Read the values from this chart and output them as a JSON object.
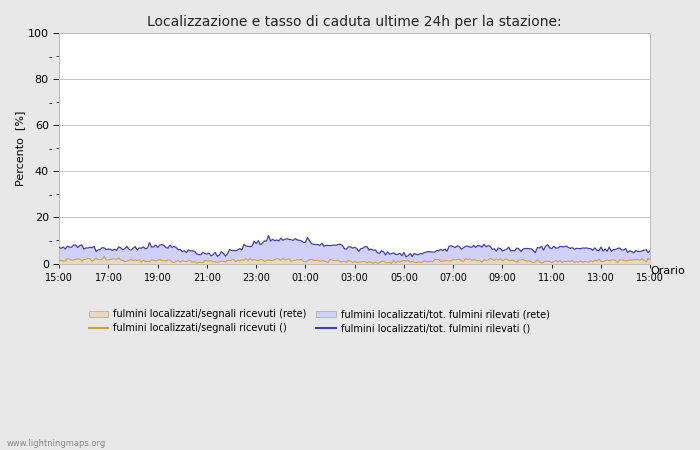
{
  "title": "Localizzazione e tasso di caduta ultime 24h per la stazione:",
  "ylabel": "Percento  [%]",
  "xlabel": "Orario",
  "ylim": [
    0,
    100
  ],
  "yticks": [
    0,
    20,
    40,
    60,
    80,
    100
  ],
  "yticks_minor": [
    10,
    30,
    50,
    70,
    90
  ],
  "xtick_labels": [
    "15:00",
    "17:00",
    "19:00",
    "21:00",
    "23:00",
    "01:00",
    "03:00",
    "05:00",
    "07:00",
    "09:00",
    "11:00",
    "13:00",
    "15:00"
  ],
  "fig_bg_color": "#e8e8e8",
  "plot_bg_color": "#ffffff",
  "fill_color_rete": "#e8d8c0",
  "fill_color_tot": "#d0d0f8",
  "line_color_rete": "#d0a030",
  "line_color_tot": "#4040b0",
  "grid_color": "#c8c8c8",
  "watermark": "www.lightningmaps.org",
  "legend_labels": [
    "fulmini localizzati/segnali ricevuti (rete)",
    "fulmini localizzati/segnali ricevuti ()",
    "fulmini localizzati/tot. fulmini rilevati (rete)",
    "fulmini localizzati/tot. fulmini rilevati ()"
  ],
  "n_points": 289
}
